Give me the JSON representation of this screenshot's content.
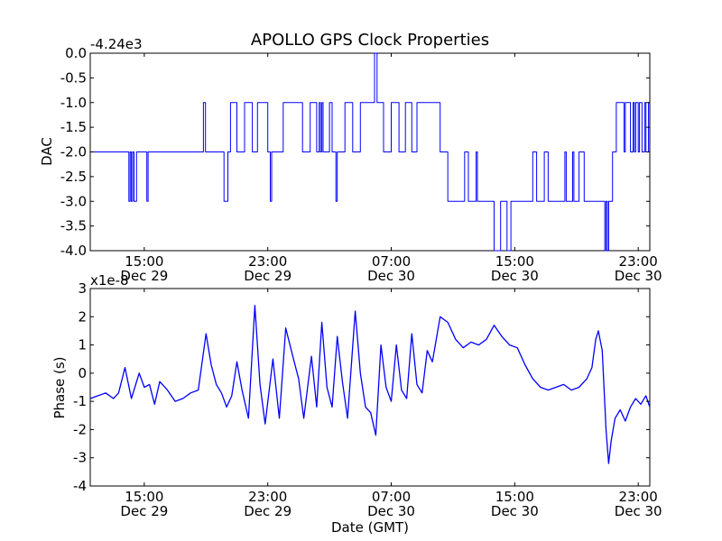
{
  "chart_data": {
    "title": "APOLLO GPS Clock Properties",
    "xlabel": "Date (GMT)",
    "x_ticks": [
      {
        "time": "2011-12-29T15:00",
        "line1": "15:00",
        "line2": "Dec 29"
      },
      {
        "time": "2011-12-29T23:00",
        "line1": "23:00",
        "line2": "Dec 29"
      },
      {
        "time": "2011-12-30T07:00",
        "line1": "07:00",
        "line2": "Dec 30"
      },
      {
        "time": "2011-12-30T15:00",
        "line1": "15:00",
        "line2": "Dec 30"
      },
      {
        "time": "2011-12-30T23:00",
        "line1": "23:00",
        "line2": "Dec 30"
      }
    ],
    "xlim": [
      "2011-12-29T11:30",
      "2011-12-30T23:45"
    ],
    "line_color": "#0000ff",
    "subplots": [
      {
        "type": "line",
        "ylabel": "DAC",
        "offset_text": "-4.24e3",
        "ylim": [
          -4.0,
          0.0
        ],
        "yticks": [
          0.0,
          -0.5,
          -1.0,
          -1.5,
          -2.0,
          -2.5,
          -3.0,
          -3.5,
          -4.0
        ],
        "ytick_labels": [
          "0.0",
          "-0.5",
          "-1.0",
          "-1.5",
          "-2.0",
          "-2.5",
          "-3.0",
          "-3.5",
          "-4.0"
        ],
        "series": [
          {
            "step": true,
            "points": [
              [
                "2011-12-29T11:30",
                -2
              ],
              [
                "2011-12-29T14:00",
                -3
              ],
              [
                "2011-12-29T14:05",
                -2
              ],
              [
                "2011-12-29T14:10",
                -3
              ],
              [
                "2011-12-29T14:15",
                -2
              ],
              [
                "2011-12-29T14:20",
                -3
              ],
              [
                "2011-12-29T14:30",
                -2
              ],
              [
                "2011-12-29T15:10",
                -3
              ],
              [
                "2011-12-29T15:15",
                -2
              ],
              [
                "2011-12-29T18:50",
                -1
              ],
              [
                "2011-12-29T18:58",
                -2
              ],
              [
                "2011-12-29T20:10",
                -3
              ],
              [
                "2011-12-29T20:25",
                -2
              ],
              [
                "2011-12-29T20:35",
                -1
              ],
              [
                "2011-12-29T21:00",
                -2
              ],
              [
                "2011-12-29T21:30",
                -1
              ],
              [
                "2011-12-29T22:00",
                -2
              ],
              [
                "2011-12-29T22:20",
                -1
              ],
              [
                "2011-12-29T23:00",
                -2
              ],
              [
                "2011-12-29T23:10",
                -3
              ],
              [
                "2011-12-29T23:15",
                -2
              ],
              [
                "2011-12-30T00:00",
                -1
              ],
              [
                "2011-12-30T01:15",
                -2
              ],
              [
                "2011-12-30T01:45",
                -1
              ],
              [
                "2011-12-30T02:10",
                -2
              ],
              [
                "2011-12-30T02:20",
                -1
              ],
              [
                "2011-12-30T02:25",
                -2
              ],
              [
                "2011-12-30T02:30",
                -1
              ],
              [
                "2011-12-30T02:35",
                -2
              ],
              [
                "2011-12-30T03:00",
                -1
              ],
              [
                "2011-12-30T03:10",
                -2
              ],
              [
                "2011-12-30T03:25",
                -3
              ],
              [
                "2011-12-30T03:30",
                -2
              ],
              [
                "2011-12-30T04:00",
                -1
              ],
              [
                "2011-12-30T04:30",
                -2
              ],
              [
                "2011-12-30T05:00",
                -1
              ],
              [
                "2011-12-30T05:55",
                0
              ],
              [
                "2011-12-30T06:05",
                -1
              ],
              [
                "2011-12-30T06:30",
                -2
              ],
              [
                "2011-12-30T07:00",
                -1
              ],
              [
                "2011-12-30T07:30",
                -2
              ],
              [
                "2011-12-30T07:55",
                -1
              ],
              [
                "2011-12-30T08:20",
                -2
              ],
              [
                "2011-12-30T08:40",
                -1
              ],
              [
                "2011-12-30T10:10",
                -2
              ],
              [
                "2011-12-30T10:40",
                -3
              ],
              [
                "2011-12-30T11:45",
                -2
              ],
              [
                "2011-12-30T12:00",
                -3
              ],
              [
                "2011-12-30T12:30",
                -2
              ],
              [
                "2011-12-30T12:35",
                -3
              ],
              [
                "2011-12-30T13:40",
                -4
              ],
              [
                "2011-12-30T14:05",
                -3
              ],
              [
                "2011-12-30T14:30",
                -4
              ],
              [
                "2011-12-30T14:45",
                -3
              ],
              [
                "2011-12-30T16:10",
                -2
              ],
              [
                "2011-12-30T16:25",
                -3
              ],
              [
                "2011-12-30T16:55",
                -2
              ],
              [
                "2011-12-30T17:10",
                -3
              ],
              [
                "2011-12-30T18:15",
                -2
              ],
              [
                "2011-12-30T18:20",
                -3
              ],
              [
                "2011-12-30T18:45",
                -2
              ],
              [
                "2011-12-30T18:50",
                -3
              ],
              [
                "2011-12-30T19:10",
                -2
              ],
              [
                "2011-12-30T19:30",
                -3
              ],
              [
                "2011-12-30T20:50",
                -4
              ],
              [
                "2011-12-30T20:55",
                -3
              ],
              [
                "2011-12-30T21:00",
                -4
              ],
              [
                "2011-12-30T21:05",
                -3
              ],
              [
                "2011-12-30T21:20",
                -2
              ],
              [
                "2011-12-30T21:35",
                -1
              ],
              [
                "2011-12-30T22:05",
                -2
              ],
              [
                "2011-12-30T22:10",
                -1
              ],
              [
                "2011-12-30T22:30",
                -2
              ],
              [
                "2011-12-30T22:40",
                -1
              ],
              [
                "2011-12-30T22:45",
                -2
              ],
              [
                "2011-12-30T22:50",
                -1
              ],
              [
                "2011-12-30T23:00",
                -2
              ],
              [
                "2011-12-30T23:05",
                -1
              ],
              [
                "2011-12-30T23:15",
                -2
              ],
              [
                "2011-12-30T23:25",
                -1
              ],
              [
                "2011-12-30T23:30",
                -2
              ],
              [
                "2011-12-30T23:40",
                -1
              ],
              [
                "2011-12-30T23:45",
                -1
              ]
            ]
          }
        ]
      },
      {
        "type": "line",
        "ylabel": "Phase (s)",
        "offset_text": "x1e-8",
        "ylim": [
          -4,
          3
        ],
        "yticks": [
          3,
          2,
          1,
          0,
          -1,
          -2,
          -3,
          -4
        ],
        "ytick_labels": [
          "3",
          "2",
          "1",
          "0",
          "-1",
          "-2",
          "-3",
          "-4"
        ],
        "series": [
          {
            "points": [
              [
                "2011-12-29T11:30",
                -0.9
              ],
              [
                "2011-12-29T12:00",
                -0.8
              ],
              [
                "2011-12-29T12:30",
                -0.7
              ],
              [
                "2011-12-29T13:00",
                -0.9
              ],
              [
                "2011-12-29T13:20",
                -0.7
              ],
              [
                "2011-12-29T13:45",
                0.2
              ],
              [
                "2011-12-29T14:10",
                -0.9
              ],
              [
                "2011-12-29T14:40",
                0.0
              ],
              [
                "2011-12-29T15:00",
                -0.5
              ],
              [
                "2011-12-29T15:20",
                -0.4
              ],
              [
                "2011-12-29T15:40",
                -1.1
              ],
              [
                "2011-12-29T16:00",
                -0.3
              ],
              [
                "2011-12-29T16:30",
                -0.6
              ],
              [
                "2011-12-29T17:00",
                -1.0
              ],
              [
                "2011-12-29T17:30",
                -0.9
              ],
              [
                "2011-12-29T18:00",
                -0.7
              ],
              [
                "2011-12-29T18:30",
                -0.6
              ],
              [
                "2011-12-29T19:00",
                1.4
              ],
              [
                "2011-12-29T19:20",
                0.3
              ],
              [
                "2011-12-29T19:40",
                -0.4
              ],
              [
                "2011-12-29T20:00",
                -0.7
              ],
              [
                "2011-12-29T20:20",
                -1.2
              ],
              [
                "2011-12-29T20:40",
                -0.8
              ],
              [
                "2011-12-29T21:00",
                0.4
              ],
              [
                "2011-12-29T21:20",
                -0.6
              ],
              [
                "2011-12-29T21:45",
                -1.6
              ],
              [
                "2011-12-29T22:10",
                2.4
              ],
              [
                "2011-12-29T22:30",
                -0.4
              ],
              [
                "2011-12-29T22:50",
                -1.8
              ],
              [
                "2011-12-29T23:20",
                0.5
              ],
              [
                "2011-12-29T23:45",
                -1.6
              ],
              [
                "2011-12-30T00:10",
                1.6
              ],
              [
                "2011-12-30T00:40",
                0.5
              ],
              [
                "2011-12-30T01:00",
                -0.2
              ],
              [
                "2011-12-30T01:20",
                -1.6
              ],
              [
                "2011-12-30T01:50",
                0.6
              ],
              [
                "2011-12-30T02:10",
                -1.2
              ],
              [
                "2011-12-30T02:30",
                1.8
              ],
              [
                "2011-12-30T02:50",
                -0.5
              ],
              [
                "2011-12-30T03:10",
                -1.2
              ],
              [
                "2011-12-30T03:30",
                1.3
              ],
              [
                "2011-12-30T03:50",
                -0.3
              ],
              [
                "2011-12-30T04:10",
                -1.6
              ],
              [
                "2011-12-30T04:40",
                2.2
              ],
              [
                "2011-12-30T05:00",
                0.0
              ],
              [
                "2011-12-30T05:20",
                -1.2
              ],
              [
                "2011-12-30T05:40",
                -1.4
              ],
              [
                "2011-12-30T06:00",
                -2.2
              ],
              [
                "2011-12-30T06:20",
                1.0
              ],
              [
                "2011-12-30T06:40",
                -0.5
              ],
              [
                "2011-12-30T07:00",
                -1.0
              ],
              [
                "2011-12-30T07:20",
                1.0
              ],
              [
                "2011-12-30T07:40",
                -0.6
              ],
              [
                "2011-12-30T08:00",
                -0.9
              ],
              [
                "2011-12-30T08:20",
                1.4
              ],
              [
                "2011-12-30T08:40",
                -0.4
              ],
              [
                "2011-12-30T09:00",
                -0.7
              ],
              [
                "2011-12-30T09:20",
                0.8
              ],
              [
                "2011-12-30T09:40",
                0.4
              ],
              [
                "2011-12-30T10:10",
                2.0
              ],
              [
                "2011-12-30T10:40",
                1.8
              ],
              [
                "2011-12-30T11:10",
                1.2
              ],
              [
                "2011-12-30T11:40",
                0.9
              ],
              [
                "2011-12-30T12:10",
                1.1
              ],
              [
                "2011-12-30T12:40",
                1.0
              ],
              [
                "2011-12-30T13:10",
                1.2
              ],
              [
                "2011-12-30T13:40",
                1.7
              ],
              [
                "2011-12-30T14:10",
                1.3
              ],
              [
                "2011-12-30T14:40",
                1.0
              ],
              [
                "2011-12-30T15:10",
                0.9
              ],
              [
                "2011-12-30T15:40",
                0.3
              ],
              [
                "2011-12-30T16:10",
                -0.2
              ],
              [
                "2011-12-30T16:40",
                -0.5
              ],
              [
                "2011-12-30T17:10",
                -0.6
              ],
              [
                "2011-12-30T17:40",
                -0.5
              ],
              [
                "2011-12-30T18:10",
                -0.4
              ],
              [
                "2011-12-30T18:40",
                -0.6
              ],
              [
                "2011-12-30T19:10",
                -0.5
              ],
              [
                "2011-12-30T19:40",
                -0.2
              ],
              [
                "2011-12-30T20:00",
                0.2
              ],
              [
                "2011-12-30T20:15",
                1.2
              ],
              [
                "2011-12-30T20:25",
                1.5
              ],
              [
                "2011-12-30T20:40",
                0.8
              ],
              [
                "2011-12-30T20:55",
                -2.0
              ],
              [
                "2011-12-30T21:05",
                -3.2
              ],
              [
                "2011-12-30T21:15",
                -2.4
              ],
              [
                "2011-12-30T21:30",
                -1.6
              ],
              [
                "2011-12-30T21:50",
                -1.3
              ],
              [
                "2011-12-30T22:10",
                -1.7
              ],
              [
                "2011-12-30T22:30",
                -1.2
              ],
              [
                "2011-12-30T22:50",
                -0.9
              ],
              [
                "2011-12-30T23:10",
                -1.1
              ],
              [
                "2011-12-30T23:30",
                -0.8
              ],
              [
                "2011-12-30T23:45",
                -1.2
              ]
            ]
          }
        ]
      }
    ]
  }
}
